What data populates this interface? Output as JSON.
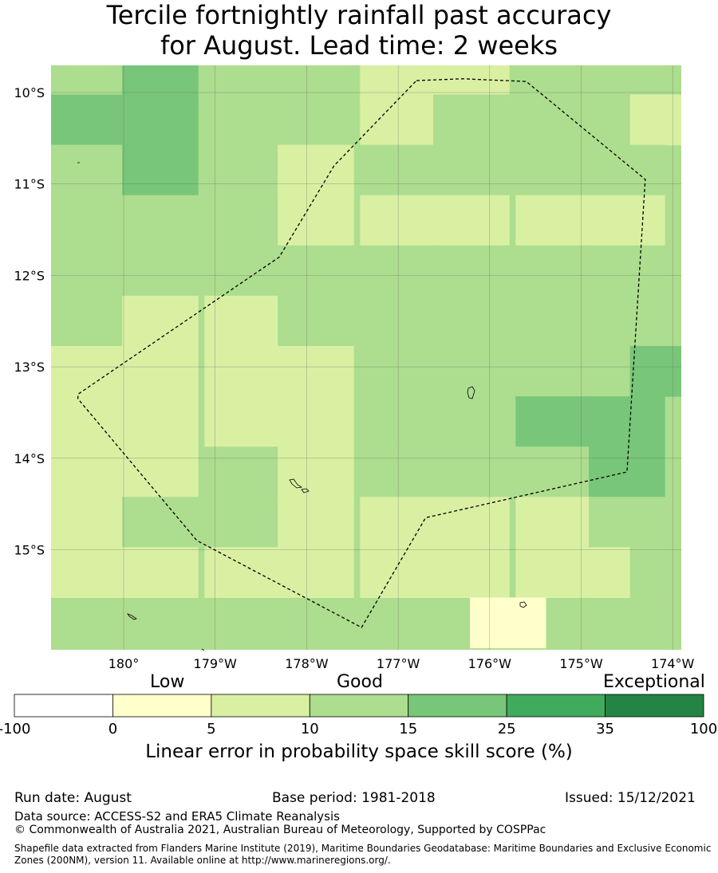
{
  "title": {
    "line1": "Tercile fortnightly rainfall past accuracy",
    "line2": "for August. Lead time: 2 weeks"
  },
  "map": {
    "lon_labels": [
      "180°",
      "179°W",
      "178°W",
      "177°W",
      "176°W",
      "175°W",
      "174°W"
    ],
    "lat_labels": [
      "10°S",
      "11°S",
      "12°S",
      "13°S",
      "14°S",
      "15°S"
    ],
    "lon_values": [
      180,
      -179,
      -178,
      -177,
      -176,
      -175,
      -174
    ],
    "lat_values": [
      -10,
      -11,
      -12,
      -13,
      -14,
      -15
    ],
    "extent": {
      "lon_min": 179.2,
      "lon_max": -173.9,
      "lat_max": -9.7,
      "lat_min": -16.1
    },
    "grid_cells": [
      {
        "lon": 179.6,
        "lat": -9.85,
        "cls": 2
      },
      {
        "lon": -179.6,
        "lat": -9.85,
        "cls": 3
      },
      {
        "lon": -178.7,
        "lat": -9.85,
        "cls": 2
      },
      {
        "lon": -177.9,
        "lat": -9.85,
        "cls": 2
      },
      {
        "lon": -177.0,
        "lat": -9.85,
        "cls": 1
      },
      {
        "lon": -176.2,
        "lat": -9.85,
        "cls": 1
      },
      {
        "lon": -175.3,
        "lat": -9.85,
        "cls": 2
      },
      {
        "lon": -174.5,
        "lat": -9.85,
        "cls": 2
      },
      {
        "lon": 179.6,
        "lat": -10.3,
        "cls": 3
      },
      {
        "lon": -179.6,
        "lat": -10.3,
        "cls": 3
      },
      {
        "lon": -178.7,
        "lat": -10.3,
        "cls": 2
      },
      {
        "lon": -177.9,
        "lat": -10.3,
        "cls": 2
      },
      {
        "lon": -177.0,
        "lat": -10.3,
        "cls": 1
      },
      {
        "lon": -176.2,
        "lat": -10.3,
        "cls": 2
      },
      {
        "lon": -175.3,
        "lat": -10.3,
        "cls": 2
      },
      {
        "lon": -174.5,
        "lat": -10.3,
        "cls": 2
      },
      {
        "lon": -174.05,
        "lat": -10.3,
        "cls": 1
      },
      {
        "lon": 179.6,
        "lat": -10.85,
        "cls": 2
      },
      {
        "lon": -179.6,
        "lat": -10.85,
        "cls": 3
      },
      {
        "lon": -178.7,
        "lat": -10.85,
        "cls": 2
      },
      {
        "lon": -177.9,
        "lat": -10.85,
        "cls": 1
      },
      {
        "lon": -177.0,
        "lat": -10.85,
        "cls": 2
      },
      {
        "lon": -176.2,
        "lat": -10.85,
        "cls": 2
      },
      {
        "lon": -175.3,
        "lat": -10.85,
        "cls": 2
      },
      {
        "lon": -174.5,
        "lat": -10.85,
        "cls": 2
      },
      {
        "lon": 179.6,
        "lat": -11.4,
        "cls": 2
      },
      {
        "lon": -179.6,
        "lat": -11.4,
        "cls": 2
      },
      {
        "lon": -178.7,
        "lat": -11.4,
        "cls": 2
      },
      {
        "lon": -177.9,
        "lat": -11.4,
        "cls": 1
      },
      {
        "lon": -177.0,
        "lat": -11.4,
        "cls": 1
      },
      {
        "lon": -176.2,
        "lat": -11.4,
        "cls": 1
      },
      {
        "lon": -175.3,
        "lat": -11.4,
        "cls": 1
      },
      {
        "lon": -174.5,
        "lat": -11.4,
        "cls": 1
      },
      {
        "lon": 179.6,
        "lat": -11.95,
        "cls": 2
      },
      {
        "lon": -179.6,
        "lat": -11.95,
        "cls": 2
      },
      {
        "lon": -178.7,
        "lat": -11.95,
        "cls": 2
      },
      {
        "lon": -177.9,
        "lat": -11.95,
        "cls": 2
      },
      {
        "lon": -177.0,
        "lat": -11.95,
        "cls": 2
      },
      {
        "lon": -176.2,
        "lat": -11.95,
        "cls": 2
      },
      {
        "lon": -175.3,
        "lat": -11.95,
        "cls": 2
      },
      {
        "lon": -174.5,
        "lat": -11.95,
        "cls": 2
      },
      {
        "lon": 179.6,
        "lat": -12.5,
        "cls": 2
      },
      {
        "lon": -179.6,
        "lat": -12.5,
        "cls": 1
      },
      {
        "lon": -178.7,
        "lat": -12.5,
        "cls": 1
      },
      {
        "lon": -177.9,
        "lat": -12.5,
        "cls": 2
      },
      {
        "lon": -177.0,
        "lat": -12.5,
        "cls": 2
      },
      {
        "lon": -176.2,
        "lat": -12.5,
        "cls": 2
      },
      {
        "lon": -175.3,
        "lat": -12.5,
        "cls": 2
      },
      {
        "lon": -174.5,
        "lat": -12.5,
        "cls": 2
      },
      {
        "lon": 179.6,
        "lat": -13.05,
        "cls": 1
      },
      {
        "lon": -179.6,
        "lat": -13.05,
        "cls": 1
      },
      {
        "lon": -178.7,
        "lat": -13.05,
        "cls": 1
      },
      {
        "lon": -177.9,
        "lat": -13.05,
        "cls": 1
      },
      {
        "lon": -177.0,
        "lat": -13.05,
        "cls": 2
      },
      {
        "lon": -176.2,
        "lat": -13.05,
        "cls": 2
      },
      {
        "lon": -175.3,
        "lat": -13.05,
        "cls": 2
      },
      {
        "lon": -174.5,
        "lat": -13.05,
        "cls": 2
      },
      {
        "lon": -174.05,
        "lat": -13.05,
        "cls": 3
      },
      {
        "lon": 179.6,
        "lat": -13.6,
        "cls": 1
      },
      {
        "lon": -179.6,
        "lat": -13.6,
        "cls": 1
      },
      {
        "lon": -178.7,
        "lat": -13.6,
        "cls": 1
      },
      {
        "lon": -177.9,
        "lat": -13.6,
        "cls": 1
      },
      {
        "lon": -177.0,
        "lat": -13.6,
        "cls": 2
      },
      {
        "lon": -176.2,
        "lat": -13.6,
        "cls": 2
      },
      {
        "lon": -175.3,
        "lat": -13.6,
        "cls": 3
      },
      {
        "lon": -174.5,
        "lat": -13.6,
        "cls": 3
      },
      {
        "lon": 179.6,
        "lat": -14.15,
        "cls": 1
      },
      {
        "lon": -179.6,
        "lat": -14.15,
        "cls": 1
      },
      {
        "lon": -178.7,
        "lat": -14.15,
        "cls": 2
      },
      {
        "lon": -177.9,
        "lat": -14.15,
        "cls": 1
      },
      {
        "lon": -177.0,
        "lat": -14.15,
        "cls": 2
      },
      {
        "lon": -176.2,
        "lat": -14.15,
        "cls": 2
      },
      {
        "lon": -175.3,
        "lat": -14.15,
        "cls": 2
      },
      {
        "lon": -174.5,
        "lat": -14.15,
        "cls": 3
      },
      {
        "lon": 179.6,
        "lat": -14.7,
        "cls": 1
      },
      {
        "lon": -179.6,
        "lat": -14.7,
        "cls": 2
      },
      {
        "lon": -178.7,
        "lat": -14.7,
        "cls": 2
      },
      {
        "lon": -177.9,
        "lat": -14.7,
        "cls": 1
      },
      {
        "lon": -177.0,
        "lat": -14.7,
        "cls": 1
      },
      {
        "lon": -176.2,
        "lat": -14.7,
        "cls": 1
      },
      {
        "lon": -175.3,
        "lat": -14.7,
        "cls": 1
      },
      {
        "lon": -174.5,
        "lat": -14.7,
        "cls": 2
      },
      {
        "lon": 179.6,
        "lat": -15.25,
        "cls": 1
      },
      {
        "lon": -179.6,
        "lat": -15.25,
        "cls": 1
      },
      {
        "lon": -178.7,
        "lat": -15.25,
        "cls": 1
      },
      {
        "lon": -177.9,
        "lat": -15.25,
        "cls": 1
      },
      {
        "lon": -177.0,
        "lat": -15.25,
        "cls": 1
      },
      {
        "lon": -176.2,
        "lat": -15.25,
        "cls": 1
      },
      {
        "lon": -175.3,
        "lat": -15.25,
        "cls": 1
      },
      {
        "lon": -174.5,
        "lat": -15.25,
        "cls": 1
      },
      {
        "lon": -174.05,
        "lat": -15.25,
        "cls": 2
      },
      {
        "lon": -175.8,
        "lat": -15.8,
        "cls": 0
      }
    ],
    "eez_boundary": [
      [
        -176.8,
        -9.87
      ],
      [
        -176.3,
        -9.85
      ],
      [
        -175.6,
        -9.88
      ],
      [
        -174.3,
        -10.95
      ],
      [
        -174.5,
        -14.15
      ],
      [
        -176.7,
        -14.65
      ],
      [
        -177.4,
        -15.85
      ],
      [
        -179.2,
        -14.9
      ],
      [
        -180.5,
        -13.35
      ],
      [
        -180.5,
        -13.3
      ],
      [
        -178.3,
        -11.8
      ],
      [
        -177.7,
        -10.8
      ],
      [
        -176.8,
        -9.87
      ]
    ]
  },
  "colorbar": {
    "category_labels": [
      "Low",
      "Good",
      "Exceptional"
    ],
    "tick_labels": [
      "-100",
      "0",
      "5",
      "10",
      "15",
      "25",
      "35",
      "100"
    ],
    "bin_colors": [
      "#ffffff",
      "#ffffcc",
      "#d9f0a3",
      "#addd8e",
      "#78c679",
      "#41ab5d",
      "#238443"
    ],
    "title": "Linear error in probability space skill score (%)"
  },
  "footer": {
    "run_date": "Run date: August",
    "base_period": "Base period: 1981-2018",
    "issued": "Issued: 15/12/2021",
    "data_source": "Data source: ACCESS-S2 and ERA5 Climate Reanalysis",
    "copyright": "© Commonwealth of Australia 2021, Australian Bureau of Meteorology, Supported by COSPPac",
    "shapefile_note": "Shapefile data extracted from Flanders Marine Institute (2019), Maritime Boundaries Geodatabase: Maritime Boundaries and Exclusive Economic Zones (200NM), version 11. Available online at http://www.marineregions.org/."
  }
}
